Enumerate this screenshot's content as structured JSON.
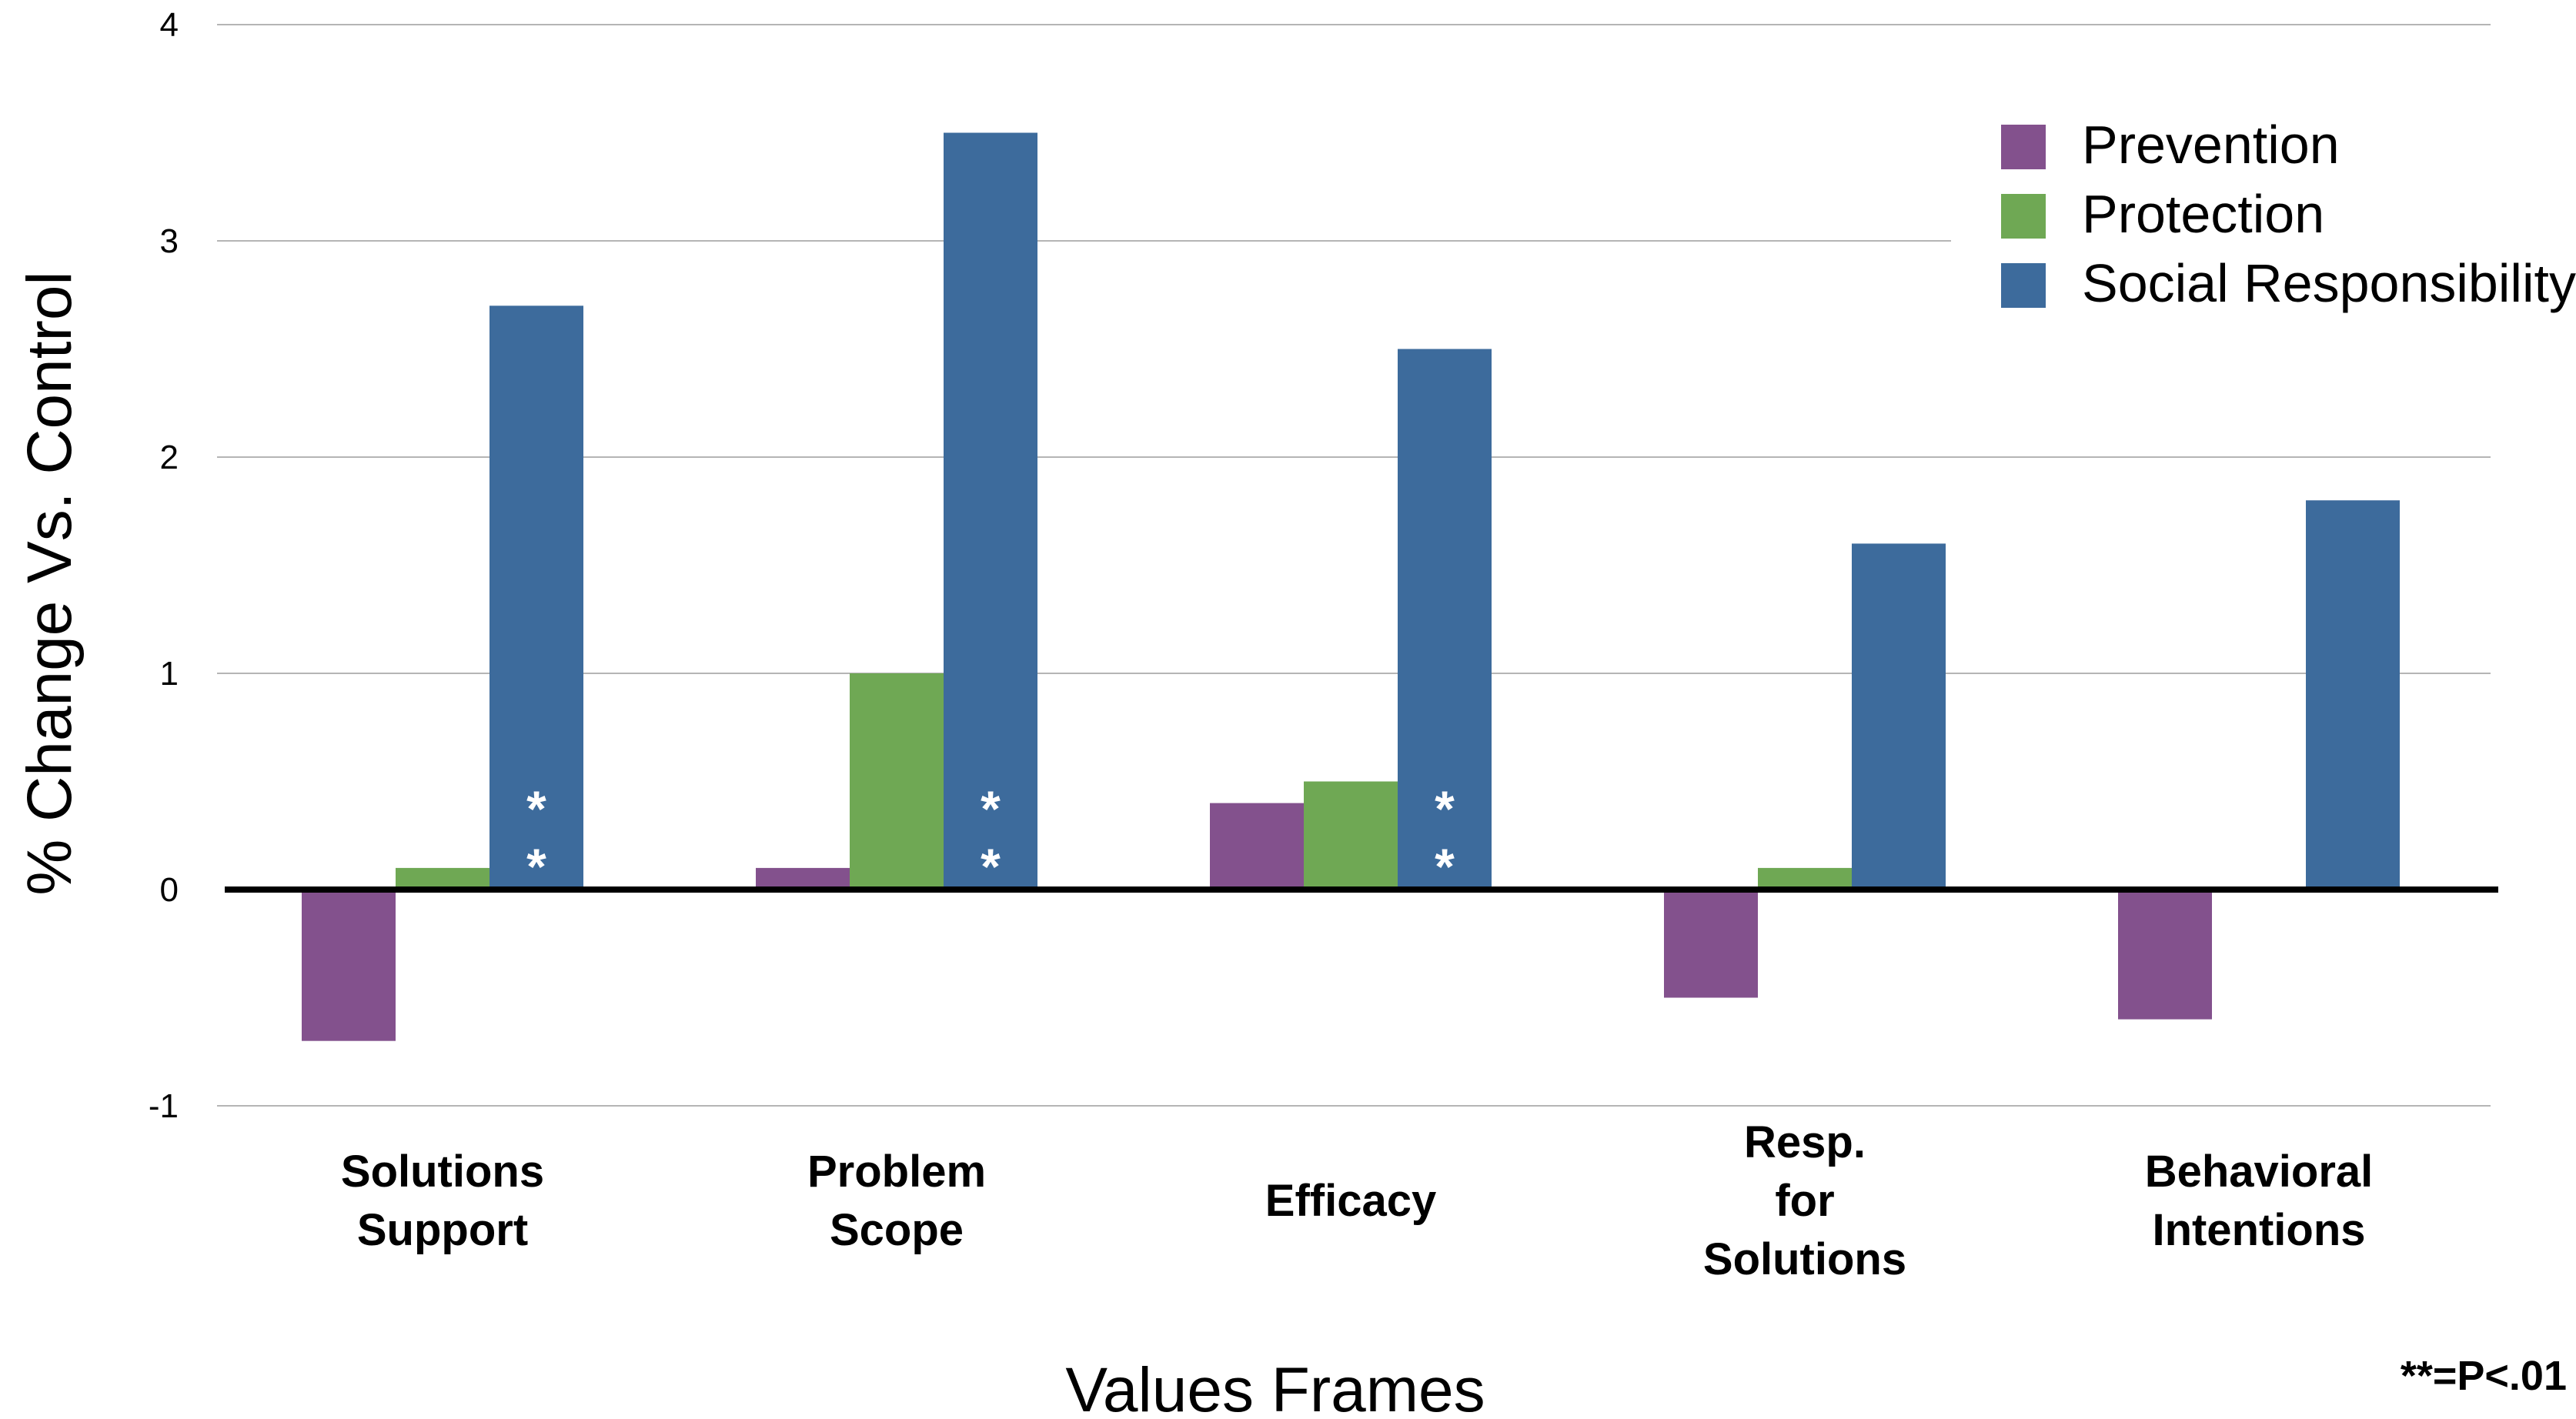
{
  "chart_data": {
    "type": "bar",
    "title": "",
    "xlabel": "Values Frames",
    "ylabel": "% Change Vs. Control",
    "ylim": [
      -1,
      4
    ],
    "yticks": [
      -1,
      0,
      1,
      2,
      3,
      4
    ],
    "ytick_labels": [
      "-1",
      "0",
      "1",
      "2",
      "3",
      "4"
    ],
    "grid": true,
    "legend_position": "top-right",
    "categories": [
      [
        "Solutions",
        "Support"
      ],
      [
        "Problem",
        "Scope"
      ],
      [
        "Efficacy"
      ],
      [
        "Resp.",
        "for",
        "Solutions"
      ],
      [
        "Behavioral",
        "Intentions"
      ]
    ],
    "series": [
      {
        "name": "Prevention",
        "color": "#83518d",
        "values": [
          -0.7,
          0.1,
          0.4,
          -0.5,
          -0.6
        ]
      },
      {
        "name": "Protection",
        "color": "#6fa854",
        "values": [
          0.1,
          1.0,
          0.5,
          0.1,
          0.0
        ]
      },
      {
        "name": "Social Responsibility",
        "color": "#3d6b9c",
        "values": [
          2.7,
          3.5,
          2.5,
          1.6,
          1.8
        ]
      }
    ],
    "significance": {
      "series_index": 2,
      "category_indices": [
        0,
        1,
        2
      ],
      "marker": "*"
    },
    "note": "**=P<.01"
  }
}
